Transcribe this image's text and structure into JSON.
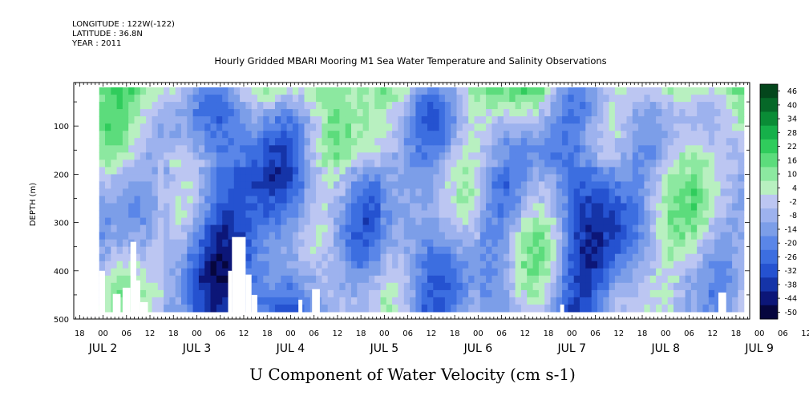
{
  "header": {
    "longitude": "LONGITUDE : 122W(-122)",
    "latitude": "LATITUDE : 36.8N",
    "year": "YEAR : 2011"
  },
  "title": "Hourly Gridded MBARI Mooring M1 Sea Water Temperature and Salinity Observations",
  "xlabel": "U Component of Water Velocity (cm s-1)",
  "ylabel": "DEPTH (m)",
  "chart_data": {
    "type": "heatmap",
    "variable": "U Component of Water Velocity (cm s-1)",
    "x_axis": {
      "hour_ticks": [
        "18",
        "00",
        "06",
        "12",
        "18",
        "00",
        "06",
        "12",
        "18",
        "00",
        "06",
        "12",
        "18",
        "00",
        "06",
        "12",
        "18",
        "00",
        "06",
        "12",
        "18",
        "00",
        "06",
        "12",
        "18",
        "00",
        "06",
        "12",
        "18",
        "00",
        "06",
        "12",
        "18",
        "00",
        "06",
        "12"
      ],
      "day_labels": [
        "JUL  2",
        "JUL  3",
        "JUL  4",
        "JUL  5",
        "JUL  6",
        "JUL  7",
        "JUL  8",
        "JUL  9"
      ],
      "range_hours": [
        -7.5,
        165.5
      ]
    },
    "y_axis": {
      "ticks": [
        100,
        200,
        300,
        400,
        500
      ],
      "range": [
        500,
        10
      ],
      "inverted": true
    },
    "data_extent": {
      "start_hour": -1,
      "end_hour": 164,
      "top_depth": 20,
      "bottom_depth": 485
    },
    "colorbar": {
      "levels": [
        -50,
        -44,
        -38,
        -32,
        -26,
        -20,
        -14,
        -8,
        -2,
        4,
        10,
        16,
        22,
        28,
        34,
        40,
        46
      ],
      "labels": [
        "46",
        "40",
        "34",
        "28",
        "22",
        "16",
        "10",
        "4",
        "-2",
        "-8",
        "-14",
        "-20",
        "-26",
        "-32",
        "-38",
        "-44",
        "-50"
      ],
      "colors": [
        "#06063e",
        "#0c1678",
        "#1534a8",
        "#2552d0",
        "#3c6ee0",
        "#5a86e8",
        "#7c9ee8",
        "#9db2ee",
        "#bcc6f2",
        "#b8f0c0",
        "#8ce8a0",
        "#5cdc7c",
        "#30cc5c",
        "#16b04a",
        "#0a8c36",
        "#066828",
        "#04461c"
      ]
    },
    "pattern": "near-surface (20-60 m) mostly positive (green, 4 to 28); deeper water mixed with broad negative (blue, -2 to -26) bands around Jul 3 and Jul 4-5, positive (green) patches at depth on Jul 6-8; missing data (white) at bottom near Jul 3 00-06, Jul 4 06-12, Jul 5 00-03, Jul 8 06-08"
  }
}
